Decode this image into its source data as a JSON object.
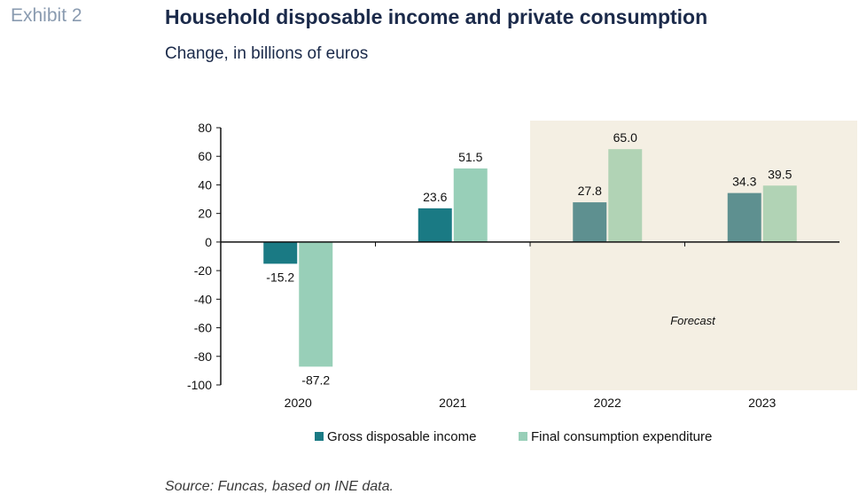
{
  "header": {
    "exhibit": "Exhibit 2",
    "title": "Household disposable income and private consumption",
    "subtitle": "Change, in billions of euros"
  },
  "source": "Source: Funcas, based on INE data.",
  "colors": {
    "income_actual": "#1a7a84",
    "consumption_actual": "#98cfb8",
    "income_forecast": "#5e9090",
    "consumption_forecast": "#b1d3b5",
    "forecast_band": "#f4efe3"
  },
  "chart_data": {
    "type": "bar",
    "categories": [
      "2020",
      "2021",
      "2022",
      "2023"
    ],
    "series": [
      {
        "name": "Gross disposable income",
        "values": [
          -15.2,
          23.6,
          27.8,
          34.3
        ]
      },
      {
        "name": "Final consumption expenditure",
        "values": [
          -87.2,
          51.5,
          65.0,
          39.5
        ]
      }
    ],
    "data_labels": [
      [
        "-15.2",
        "23.6",
        "27.8",
        "34.3"
      ],
      [
        "-87.2",
        "51.5",
        "65.0",
        "39.5"
      ]
    ],
    "forecast_categories": [
      "2022",
      "2023"
    ],
    "forecast_label": "Forecast",
    "ylim": [
      -100,
      80
    ],
    "yticks": [
      80,
      60,
      40,
      20,
      0,
      -20,
      -40,
      -60,
      -80,
      -100
    ],
    "legend_position": "bottom",
    "grid": false
  }
}
